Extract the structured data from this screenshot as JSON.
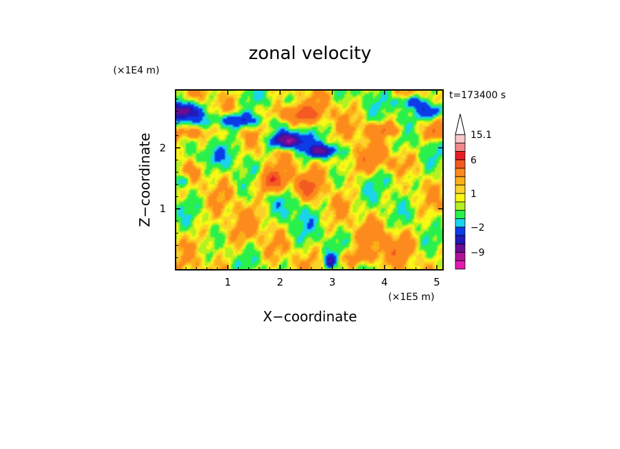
{
  "chart_data": {
    "type": "heatmap",
    "title": "zonal velocity",
    "xlabel": "X−coordinate",
    "ylabel": "Z−coordinate",
    "x_unit_label": "(×1E5 m)",
    "y_unit_label": "(×1E4 m)",
    "time_label": "t=173400 s",
    "xlim": [
      0,
      5.12
    ],
    "ylim": [
      0,
      2.95
    ],
    "x_ticks": [
      1,
      2,
      3,
      4,
      5
    ],
    "y_ticks": [
      1,
      2
    ],
    "grid": false,
    "legend": "colorbar-right",
    "colorbar": {
      "labels": [
        {
          "value": 15.1,
          "text": "15.1"
        },
        {
          "value": 6,
          "text": "6"
        },
        {
          "value": 1,
          "text": "1"
        },
        {
          "value": -2,
          "text": "−2"
        },
        {
          "value": -9,
          "text": "−9"
        }
      ],
      "levels": [
        {
          "max": -12,
          "color": "#e21bb0"
        },
        {
          "max": -9,
          "color": "#b0129a"
        },
        {
          "max": -6,
          "color": "#6a0c96"
        },
        {
          "max": -4,
          "color": "#1f1ab8"
        },
        {
          "max": -2,
          "color": "#0c3be8"
        },
        {
          "max": -1,
          "color": "#19d4ec"
        },
        {
          "max": 0,
          "color": "#2af04c"
        },
        {
          "max": 0.5,
          "color": "#b4f022"
        },
        {
          "max": 1,
          "color": "#f8f814"
        },
        {
          "max": 1.5,
          "color": "#fcd22a"
        },
        {
          "max": 2,
          "color": "#fcb018"
        },
        {
          "max": 4,
          "color": "#fc8a1c"
        },
        {
          "max": 6,
          "color": "#f45a22"
        },
        {
          "max": 9,
          "color": "#e81e26"
        },
        {
          "max": 12,
          "color": "#f28a8a"
        },
        {
          "max": 15.1,
          "color": "#f8c8c8"
        }
      ]
    },
    "field_features": [
      {
        "x": 0.1,
        "z": 2.6,
        "sx": 0.35,
        "sz": 0.14,
        "amp": -8
      },
      {
        "x": 1.2,
        "z": 2.45,
        "sx": 0.5,
        "sz": 0.12,
        "amp": -5
      },
      {
        "x": 2.15,
        "z": 2.12,
        "sx": 0.3,
        "sz": 0.12,
        "amp": -10
      },
      {
        "x": 2.8,
        "z": 1.95,
        "sx": 0.3,
        "sz": 0.1,
        "amp": -7
      },
      {
        "x": 4.9,
        "z": 2.6,
        "sx": 0.25,
        "sz": 0.12,
        "amp": -6
      },
      {
        "x": 4.5,
        "z": 2.75,
        "sx": 0.3,
        "sz": 0.1,
        "amp": -4
      },
      {
        "x": 2.3,
        "z": 2.55,
        "sx": 0.45,
        "sz": 0.15,
        "amp": 5
      },
      {
        "x": 0.3,
        "z": 2.25,
        "sx": 0.3,
        "sz": 0.12,
        "amp": 4
      },
      {
        "x": 4.0,
        "z": 2.3,
        "sx": 0.4,
        "sz": 0.12,
        "amp": 3
      },
      {
        "x": 5.0,
        "z": 2.25,
        "sx": 0.2,
        "sz": 0.12,
        "amp": 4
      },
      {
        "x": 1.85,
        "z": 1.45,
        "sx": 0.3,
        "sz": 0.18,
        "amp": 5
      },
      {
        "x": 2.5,
        "z": 1.35,
        "sx": 0.25,
        "sz": 0.18,
        "amp": 3
      },
      {
        "x": 3.5,
        "z": 1.75,
        "sx": 0.6,
        "sz": 0.25,
        "amp": 2
      },
      {
        "x": 0.6,
        "z": 1.85,
        "sx": 0.5,
        "sz": 0.15,
        "amp": -1.5
      },
      {
        "x": 4.2,
        "z": 1.5,
        "sx": 0.4,
        "sz": 0.15,
        "amp": -1.5
      },
      {
        "x": 1.0,
        "z": 0.6,
        "sx": 0.6,
        "sz": 0.35,
        "amp": 1.2
      },
      {
        "x": 4.2,
        "z": 0.45,
        "sx": 0.6,
        "sz": 0.3,
        "amp": 1.5
      },
      {
        "x": 3.5,
        "z": 0.2,
        "sx": 0.4,
        "sz": 0.15,
        "amp": 2.5
      },
      {
        "x": 2.95,
        "z": 0.15,
        "sx": 0.1,
        "sz": 0.1,
        "amp": -6
      },
      {
        "x": 0.1,
        "z": 1.45,
        "sx": 0.15,
        "sz": 0.1,
        "amp": -3
      },
      {
        "x": 2.3,
        "z": 0.9,
        "sx": 0.3,
        "sz": 0.4,
        "amp": -1
      }
    ]
  }
}
